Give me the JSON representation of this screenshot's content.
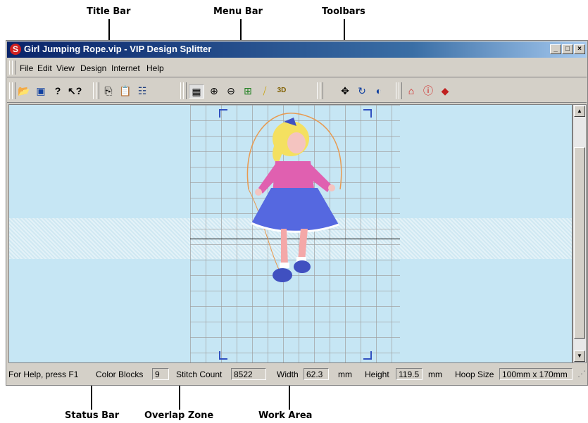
{
  "callouts": {
    "title_bar": "Title Bar",
    "menu_bar": "Menu Bar",
    "toolbars": "Toolbars",
    "status_bar": "Status Bar",
    "overlap_zone": "Overlap Zone",
    "work_area": "Work Area"
  },
  "window": {
    "title": "Girl Jumping Rope.vip - VIP Design Splitter",
    "minimize": "_",
    "maximize": "□",
    "close": "×"
  },
  "menu": {
    "items": [
      "File",
      "Edit",
      "View",
      "Design",
      "Internet",
      "Help"
    ]
  },
  "toolbar_icons": [
    "open-folder-icon",
    "camera-icon",
    "help-icon",
    "context-help-icon",
    "copy-icon",
    "paste-icon",
    "properties-icon",
    "grid-icon",
    "zoom-in-icon",
    "zoom-out-icon",
    "zoom-fit-icon",
    "stitch-icon",
    "3d-icon",
    "move-icon",
    "rotate-icon",
    "split-icon",
    "home-icon",
    "info-icon",
    "book-icon"
  ],
  "status": {
    "help": "For Help, press F1",
    "color_blocks_label": "Color Blocks",
    "color_blocks": "9",
    "stitch_count_label": "Stitch Count",
    "stitch_count": "8522",
    "width_label": "Width",
    "width": "62.3",
    "width_unit": "mm",
    "height_label": "Height",
    "height": "119.5",
    "height_unit": "mm",
    "hoop_size_label": "Hoop Size",
    "hoop_size": "100mm x 170mm"
  },
  "colors": {
    "titlebar": "#0a246a",
    "work_area": "#c6e6f4",
    "hoop_corners": "#3050c0"
  }
}
